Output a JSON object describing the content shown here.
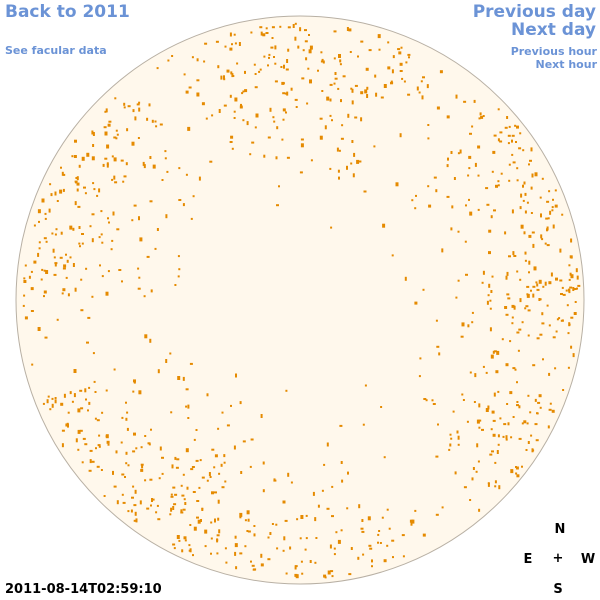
{
  "nav": {
    "back_label": "Back to 2011",
    "facular_label": "See facular data",
    "prev_day_label": "Previous day",
    "next_day_label": "Next day",
    "prev_hour_label": "Previous hour",
    "next_hour_label": "Next hour"
  },
  "compass": {
    "north": "N",
    "south": "S",
    "east": "E",
    "west": "W",
    "center": "+"
  },
  "timestamp": "2011-08-14T02:59:10",
  "colors": {
    "link": "#6b93d6",
    "disk_fill": "#fff8ec",
    "disk_edge": "#b8b0a4",
    "speck": "#e58a00"
  }
}
